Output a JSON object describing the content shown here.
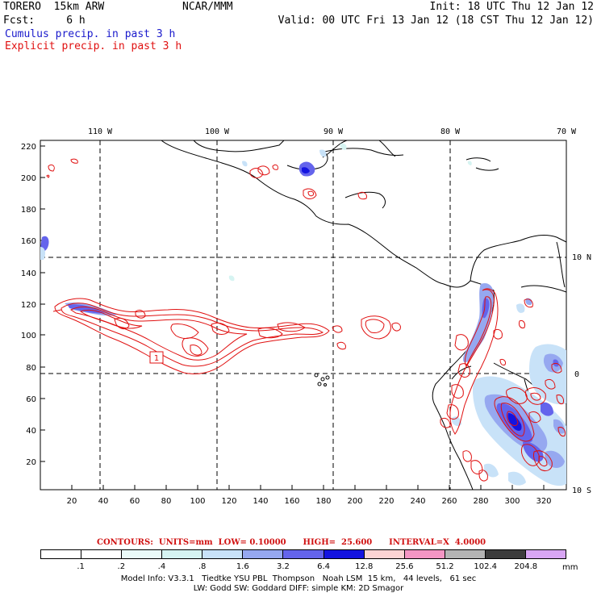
{
  "header": {
    "model": "TORERO  15km ARW",
    "center": "NCAR/MMM",
    "init": "Init: 18 UTC Thu 12 Jan 12",
    "fcst": "Fcst:     6 h",
    "valid": "Valid: 00 UTC Fri 13 Jan 12 (18 CST Thu 12 Jan 12)",
    "field1": "Cumulus precip. in past 3 h",
    "field2": "Explicit precip. in past 3 h"
  },
  "axes": {
    "lon_labels": [
      "110 W",
      "100 W",
      "90 W",
      "80 W",
      "70 W"
    ],
    "lat_labels": [
      "10 N",
      "0",
      "10 S"
    ],
    "x_ticks": [
      "20",
      "40",
      "60",
      "80",
      "100",
      "120",
      "140",
      "160",
      "180",
      "200",
      "220",
      "240",
      "260",
      "280",
      "300",
      "320"
    ],
    "y_ticks": [
      "20",
      "40",
      "60",
      "80",
      "100",
      "120",
      "140",
      "160",
      "180",
      "200",
      "220"
    ]
  },
  "map_annotation": "1",
  "contour_info": "CONTOURS:  UNITS=mm  LOW= 0.10000      HIGH=  25.600      INTERVAL=X  4.0000",
  "colorbar": {
    "colors": [
      "#ffffff",
      "#ffffff",
      "#eafaf8",
      "#d6f4f2",
      "#c8e2f8",
      "#96a8f0",
      "#6464ec",
      "#1414e0",
      "#fcd4d4",
      "#f496c4",
      "#b4b4b4",
      "#3c3c3c",
      "#d8a6f4"
    ],
    "labels": [
      ".1",
      ".2",
      ".4",
      ".8",
      "1.6",
      "3.2",
      "6.4",
      "12.8",
      "25.6",
      "51.2",
      "102.4",
      "204.8"
    ],
    "unit": "mm"
  },
  "model_info": {
    "line1": "Model Info: V3.3.1   Tiedtke YSU PBL  Thompson   Noah LSM  15 km,   44 levels,   61 sec",
    "line2": "LW: Godd SW: Goddard DIFF: simple KM: 2D Smagor"
  }
}
